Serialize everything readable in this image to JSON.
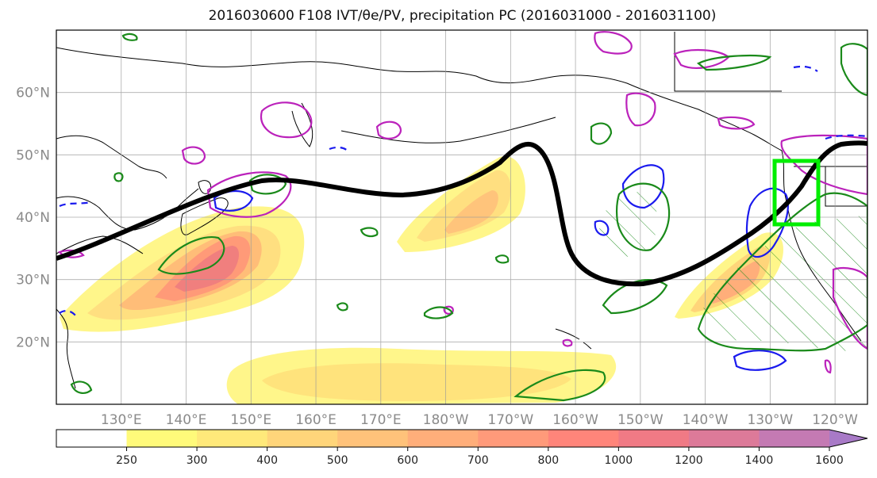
{
  "title": "2016030600 F108 IVT/θe/PV, precipitation PC (2016031000 - 2016031100)",
  "map": {
    "lon_range": [
      120,
      245
    ],
    "lat_range": [
      10,
      70
    ],
    "lat_ticks": [
      {
        "value": 20,
        "label": "20°N"
      },
      {
        "value": 30,
        "label": "30°N"
      },
      {
        "value": 40,
        "label": "40°N"
      },
      {
        "value": 50,
        "label": "50°N"
      },
      {
        "value": 60,
        "label": "60°N"
      }
    ],
    "lon_ticks": [
      {
        "value": 130,
        "label": "130°E"
      },
      {
        "value": 140,
        "label": "140°E"
      },
      {
        "value": 150,
        "label": "150°E"
      },
      {
        "value": 160,
        "label": "160°E"
      },
      {
        "value": 170,
        "label": "170°E"
      },
      {
        "value": 180,
        "label": "180°W"
      },
      {
        "value": 190,
        "label": "170°W"
      },
      {
        "value": 200,
        "label": "160°W"
      },
      {
        "value": 210,
        "label": "150°W"
      },
      {
        "value": 220,
        "label": "140°W"
      },
      {
        "value": 230,
        "label": "130°W"
      },
      {
        "value": 240,
        "label": "120°W"
      }
    ],
    "grid": true,
    "jet_axis_color": "#000000",
    "highlight_box_color": "#00ee00",
    "contour_colors": {
      "green": "#1a8a1a",
      "blue": "#1a1aee",
      "magenta": "#bb22bb"
    }
  },
  "colorbar": {
    "levels": [
      "250",
      "300",
      "400",
      "500",
      "600",
      "700",
      "800",
      "1000",
      "1200",
      "1400",
      "1600"
    ],
    "colors": [
      "#ffffff",
      "#fffa7a",
      "#ffe97a",
      "#ffd57a",
      "#ffc27a",
      "#ffae7a",
      "#ff9a7a",
      "#ff857a",
      "#f07a85",
      "#dd7a99",
      "#c47ab3",
      "#a87ac7"
    ]
  }
}
